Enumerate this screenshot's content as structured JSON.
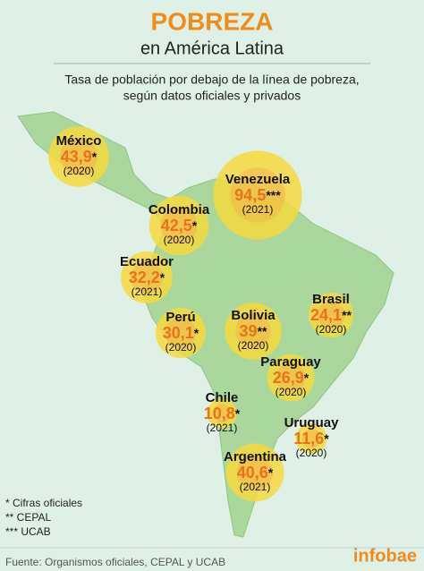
{
  "header": {
    "title": "POBREZA",
    "subtitle": "en América Latina",
    "description": [
      "Tasa de población por debajo de la línea de pobreza,",
      "según datos oficiales y privados"
    ]
  },
  "countries": [
    {
      "name": "México",
      "value": 43.9,
      "value_label": "43,9",
      "marker": "*",
      "year": "(2020)"
    },
    {
      "name": "Venezuela",
      "value": 94.5,
      "value_label": "94,5",
      "marker": "***",
      "year": "(2021)"
    },
    {
      "name": "Colombia",
      "value": 42.5,
      "value_label": "42,5",
      "marker": "*",
      "year": "(2020)"
    },
    {
      "name": "Ecuador",
      "value": 32.2,
      "value_label": "32,2",
      "marker": "*",
      "year": "(2021)"
    },
    {
      "name": "Perú",
      "value": 30.1,
      "value_label": "30,1",
      "marker": "*",
      "year": "(2020)"
    },
    {
      "name": "Bolivia",
      "value": 39,
      "value_label": "39",
      "marker": "**",
      "year": "(2020)"
    },
    {
      "name": "Brasil",
      "value": 24.1,
      "value_label": "24,1",
      "marker": "**",
      "year": "(2020)"
    },
    {
      "name": "Paraguay",
      "value": 26.9,
      "value_label": "26,9",
      "marker": "*",
      "year": "(2020)"
    },
    {
      "name": "Chile",
      "value": 10.8,
      "value_label": "10,8",
      "marker": "*",
      "year": "(2021)"
    },
    {
      "name": "Uruguay",
      "value": 11.6,
      "value_label": "11,6",
      "marker": "*",
      "year": "(2020)"
    },
    {
      "name": "Argentina",
      "value": 40.6,
      "value_label": "40,6",
      "marker": "*",
      "year": "(2021)"
    }
  ],
  "notes": [
    "* Cifras oficiales",
    "** CEPAL",
    "*** UCAB"
  ],
  "footer": {
    "source": "Fuente: Organismos oficiales, CEPAL y UCAB",
    "brand": "infobae"
  }
}
